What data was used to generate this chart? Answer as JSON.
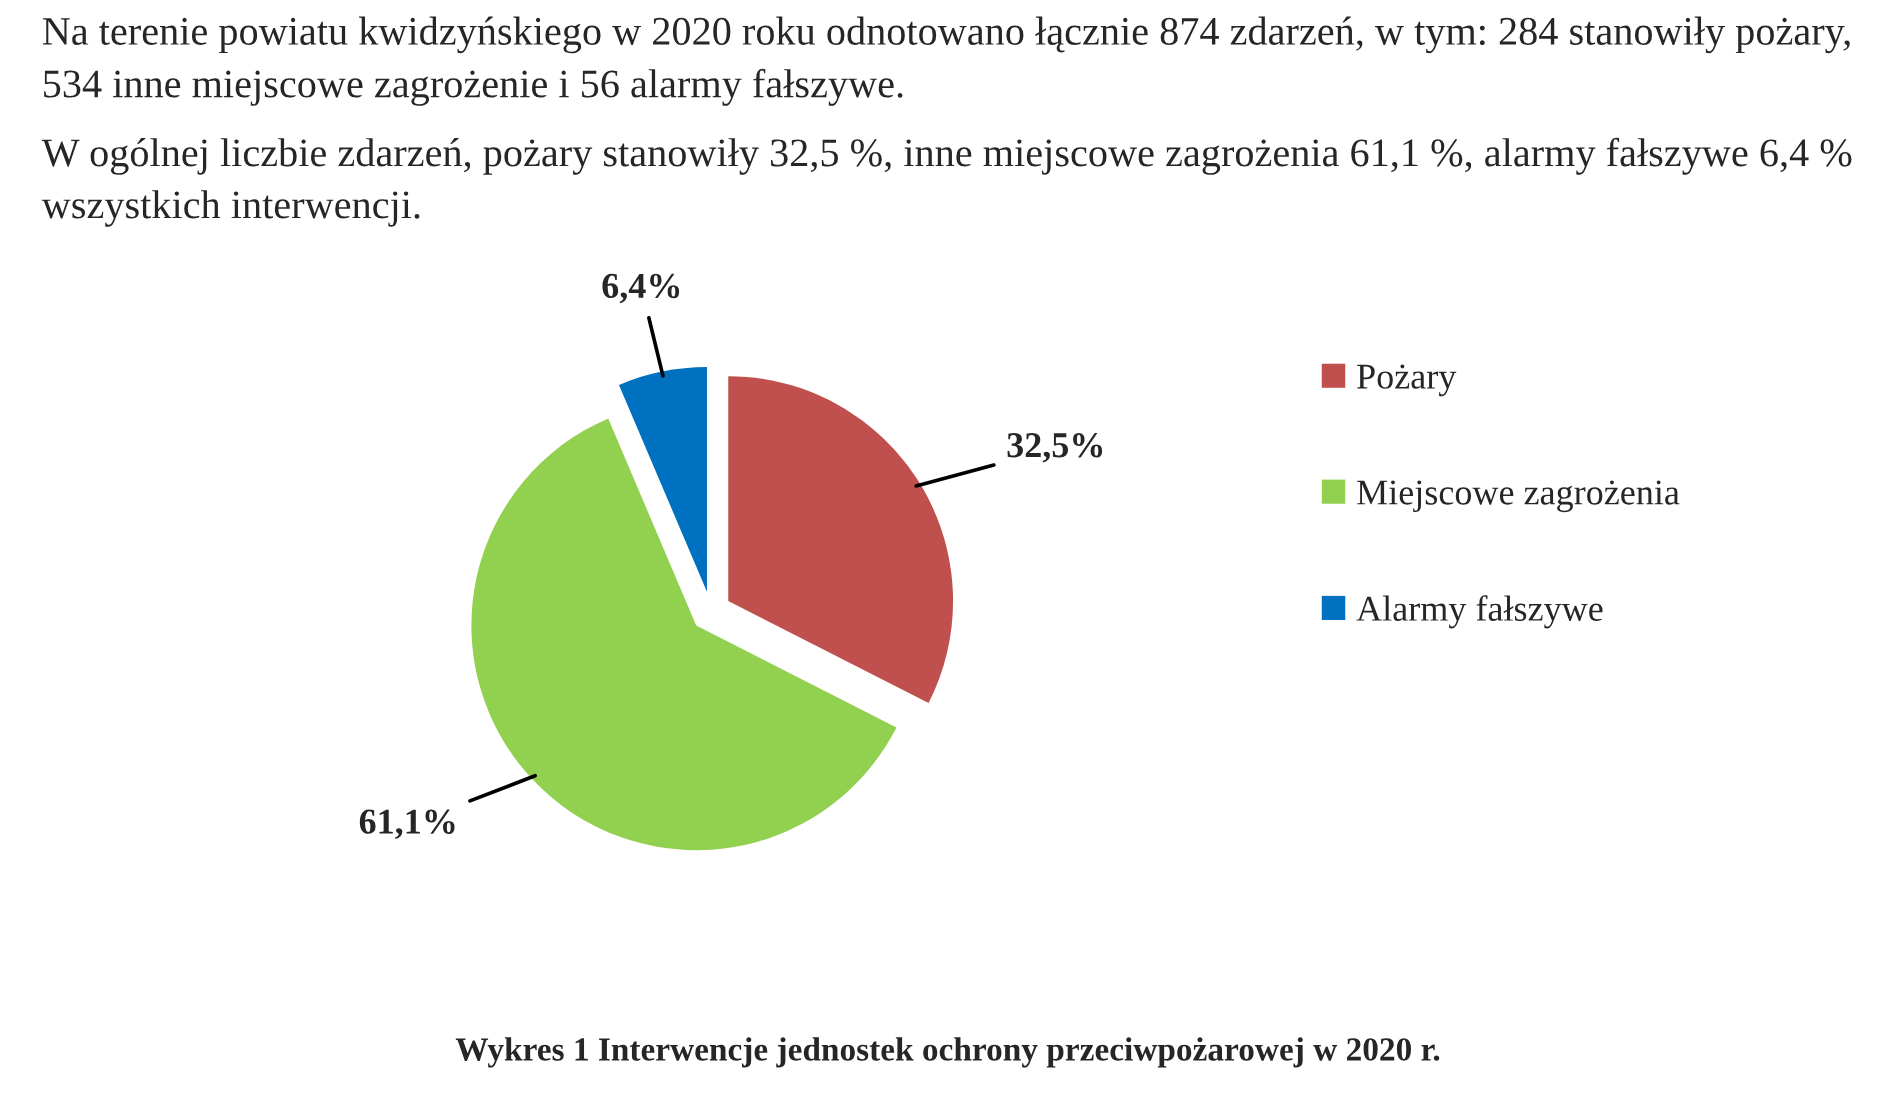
{
  "chart_data": {
    "type": "pie",
    "title": "Wykres 1 Interwencje jednostek ochrony przeciwpożarowej w 2020 r.",
    "annotations": [
      "Na terenie powiatu kwidzyńskiego w 2020 roku odnotowano łącznie 874 zdarzeń, w tym: 284 stanowiły pożary, 534 inne miejscowe zagrożenie i 56 alarmy fałszywe.",
      "W ogólnej liczbie zdarzeń, pożary stanowiły 32,5 %, inne miejscowe zagrożenia 61,1 %, alarmy fałszywe 6,4 % wszystkich interwencji."
    ],
    "categories": [
      "Pożary",
      "Miejscowe zagrożenia",
      "Alarmy fałszywe"
    ],
    "values": [
      32.5,
      61.1,
      6.4
    ],
    "colors": [
      "#c0504d",
      "#92d050",
      "#0070c0"
    ],
    "value_labels": [
      "32,5%",
      "61,1%",
      "6,4%"
    ],
    "legend": "right"
  }
}
